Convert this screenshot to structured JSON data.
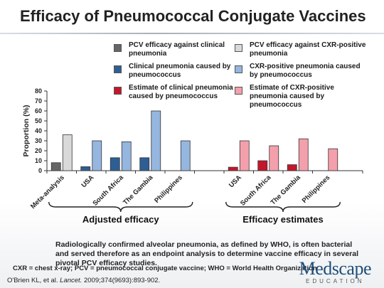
{
  "slide": {
    "title": "Efficacy of Pneumococcal Conjugate Vaccines",
    "caption": "Radiologically confirmed alveolar pneumonia, as defined by WHO, is often bacterial and served therefore as an endpoint analysis to determine vaccine efficacy in several pivotal PCV efficacy studies.",
    "abbreviations": "CXR = chest x-ray; PCV = pneumococcal conjugate vaccine; WHO = World Health Organization",
    "citation_prefix": "O'Brien KL, et al.",
    "citation_journal": "Lancet.",
    "citation_suffix": "2009;374(9693):893-902.",
    "logo_word": "Medscape",
    "logo_sub": "EDUCATION"
  },
  "chart_data": {
    "type": "bar",
    "ylabel": "Proportion (%)",
    "ylim": [
      0,
      80
    ],
    "yticks": [
      0,
      10,
      20,
      30,
      40,
      50,
      60,
      70,
      80
    ],
    "grid": false,
    "legend_position": "top",
    "series": [
      {
        "key": "clin",
        "name": "PCV efficacy against clinical pneumonia",
        "color": "#666666"
      },
      {
        "key": "cxr",
        "name": "PCV efficacy against CXR-positive pneumonia",
        "color": "#d9d9d9"
      },
      {
        "key": "clin_pc",
        "name": "Clinical pneumonia caused by pneumococcus",
        "color": "#2e5f94"
      },
      {
        "key": "cxr_pc",
        "name": "CXR-positive pneumonia caused by pneumococcus",
        "color": "#95b6de"
      },
      {
        "key": "est_clin",
        "name": "Estimate of clinical pneumonia caused by pneumococcus",
        "color": "#c4172c"
      },
      {
        "key": "est_cxr",
        "name": "Estimate of CXR-positive pneumonia caused by pneumococcus",
        "color": "#f4a0ac"
      }
    ],
    "groups": [
      {
        "label": "Adjusted efficacy",
        "categories": [
          {
            "label": "Meta-analysis",
            "bars": [
              {
                "series": "clin",
                "value": 8
              },
              {
                "series": "cxr",
                "value": 36
              }
            ]
          },
          {
            "label": "USA",
            "bars": [
              {
                "series": "clin_pc",
                "value": 4
              },
              {
                "series": "cxr_pc",
                "value": 30
              }
            ]
          },
          {
            "label": "South Africa",
            "bars": [
              {
                "series": "clin_pc",
                "value": 13
              },
              {
                "series": "cxr_pc",
                "value": 29
              }
            ]
          },
          {
            "label": "The Gambia",
            "bars": [
              {
                "series": "clin_pc",
                "value": 13
              },
              {
                "series": "cxr_pc",
                "value": 60
              }
            ]
          },
          {
            "label": "Philippines",
            "bars": [
              {
                "series": "clin_pc",
                "value": 0
              },
              {
                "series": "cxr_pc",
                "value": 30
              }
            ]
          }
        ]
      },
      {
        "label": "Efficacy estimates",
        "categories": [
          {
            "label": "USA",
            "bars": [
              {
                "series": "est_clin",
                "value": 3.5
              },
              {
                "series": "est_cxr",
                "value": 30
              }
            ]
          },
          {
            "label": "South Africa",
            "bars": [
              {
                "series": "est_clin",
                "value": 10
              },
              {
                "series": "est_cxr",
                "value": 25
              }
            ]
          },
          {
            "label": "The Gambia",
            "bars": [
              {
                "series": "est_clin",
                "value": 6
              },
              {
                "series": "est_cxr",
                "value": 32
              }
            ]
          },
          {
            "label": "Philippines",
            "bars": [
              {
                "series": "est_clin",
                "value": 0
              },
              {
                "series": "est_cxr",
                "value": 22
              }
            ]
          }
        ]
      }
    ]
  }
}
